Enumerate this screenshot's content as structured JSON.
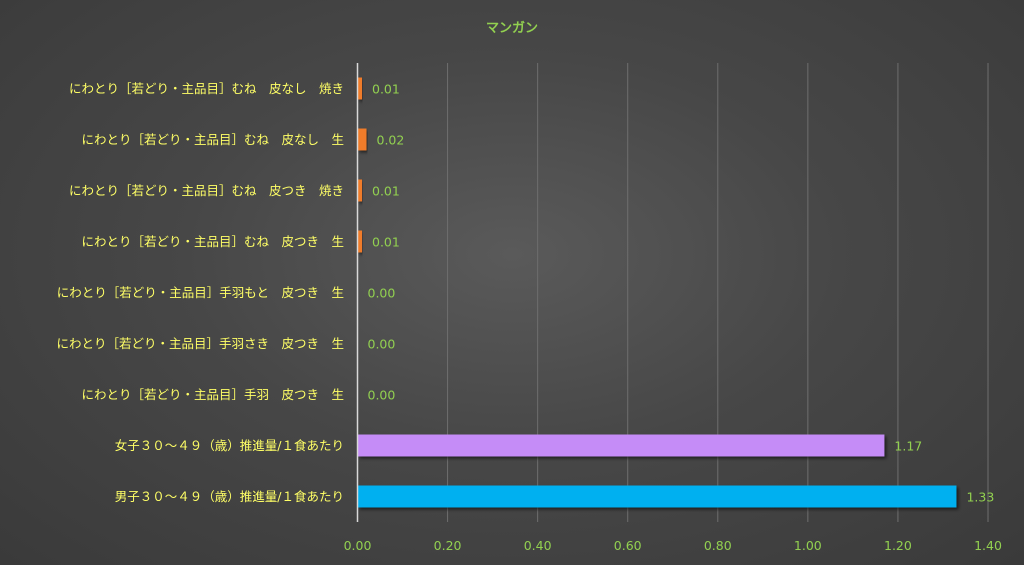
{
  "chart_data": {
    "type": "bar",
    "orientation": "horizontal",
    "title": "マンガン",
    "categories": [
      "にわとり［若どり・主品目］むね　皮なし　焼き",
      "にわとり［若どり・主品目］むね　皮なし　生",
      "にわとり［若どり・主品目］むね　皮つき　焼き",
      "にわとり［若どり・主品目］むね　皮つき　生",
      "にわとり［若どり・主品目］手羽もと　皮つき　生",
      "にわとり［若どり・主品目］手羽さき　皮つき　生",
      "にわとり［若どり・主品目］手羽　皮つき　生",
      "女子３０～４９（歳）推進量/１食あたり",
      "男子３０～４９（歳）推進量/１食あたり"
    ],
    "values": [
      0.01,
      0.02,
      0.01,
      0.01,
      0.0,
      0.0,
      0.0,
      1.17,
      1.33
    ],
    "value_labels": [
      "0.01",
      "0.02",
      "0.01",
      "0.01",
      "0.00",
      "0.00",
      "0.00",
      "1.17",
      "1.33"
    ],
    "bar_colors": [
      "#f07c2a",
      "#f07c2a",
      "#f07c2a",
      "#f07c2a",
      "#f07c2a",
      "#f07c2a",
      "#f07c2a",
      "#c58cf7",
      "#00b0f0"
    ],
    "xlim": [
      0,
      1.4
    ],
    "xticks": [
      "0.00",
      "0.20",
      "0.40",
      "0.60",
      "0.80",
      "1.00",
      "1.20",
      "1.40"
    ],
    "grid": true,
    "legend": "none"
  }
}
